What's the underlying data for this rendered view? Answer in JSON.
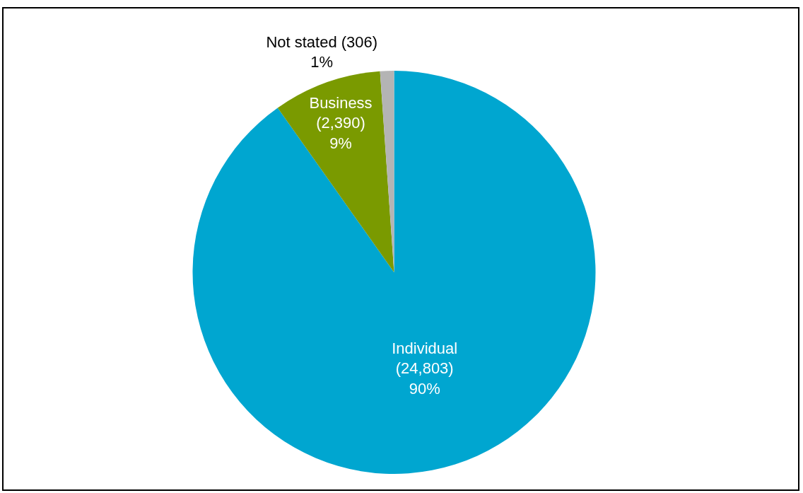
{
  "chart_data": {
    "type": "pie",
    "categories": [
      "Individual",
      "Business",
      "Not stated"
    ],
    "values": [
      24803,
      2390,
      306
    ],
    "value_labels": [
      "(24,803) 90%",
      "(2,390) 9%",
      "(306) 1%"
    ],
    "colors": [
      "#00a6d0",
      "#7a9a00",
      "#b4b4b4"
    ],
    "legend": false
  }
}
